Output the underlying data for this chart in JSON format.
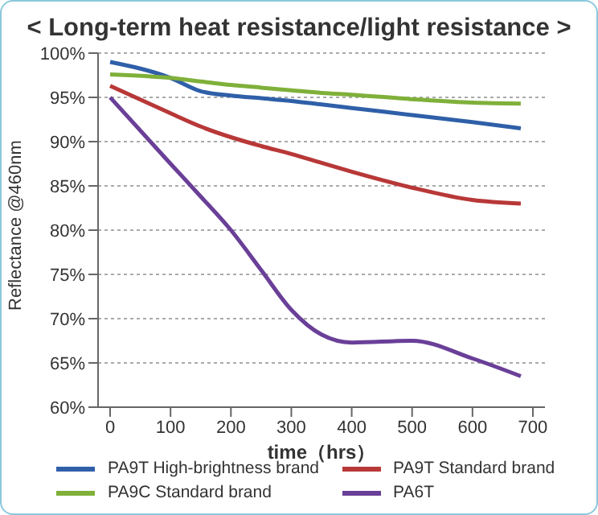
{
  "chart_data": {
    "type": "line",
    "title": "< Long-term heat resistance/light resistance >",
    "xlabel": "time（hrs）",
    "ylabel": "Reflectance @460nm",
    "x": [
      0,
      100,
      150,
      200,
      250,
      300,
      350,
      400,
      500,
      600,
      680
    ],
    "series": [
      {
        "name": "PA9T High-brightness  brand",
        "color": "#2f5fa8",
        "values": [
          99,
          97.2,
          95.7,
          95.2,
          94.9,
          94.6,
          94.2,
          93.8,
          93,
          92.2,
          91.5
        ]
      },
      {
        "name": "PA9T Standard brand",
        "color": "#b83838",
        "values": [
          96.3,
          93.2,
          91.7,
          90.5,
          89.5,
          88.6,
          87.6,
          86.6,
          84.8,
          83.4,
          83
        ]
      },
      {
        "name": "PA9C Standard brand",
        "color": "#7fb03a",
        "values": [
          97.6,
          97.2,
          96.8,
          96.4,
          96.1,
          95.8,
          95.5,
          95.3,
          94.8,
          94.4,
          94.3
        ]
      },
      {
        "name": "PA6T",
        "color": "#6a3f98",
        "values": [
          95,
          87.5,
          83.8,
          80,
          75.5,
          71,
          68.2,
          67.3,
          67.5,
          65.5,
          63.5
        ]
      }
    ],
    "xlim": [
      -20,
      720
    ],
    "xticks": [
      0,
      100,
      200,
      300,
      400,
      500,
      600,
      700
    ],
    "ylim": [
      60,
      100
    ],
    "yticks": [
      {
        "value": 60,
        "label": "60%"
      },
      {
        "value": 65,
        "label": "65%"
      },
      {
        "value": 70,
        "label": "70%"
      },
      {
        "value": 75,
        "label": "75%"
      },
      {
        "value": 80,
        "label": "80%"
      },
      {
        "value": 85,
        "label": "85%"
      },
      {
        "value": 90,
        "label": "90%"
      },
      {
        "value": 95,
        "label": "95%"
      },
      {
        "value": 100,
        "label": "100%"
      }
    ],
    "grid": "y",
    "legend": "bottom",
    "marker": "none",
    "line_style": "solid"
  }
}
